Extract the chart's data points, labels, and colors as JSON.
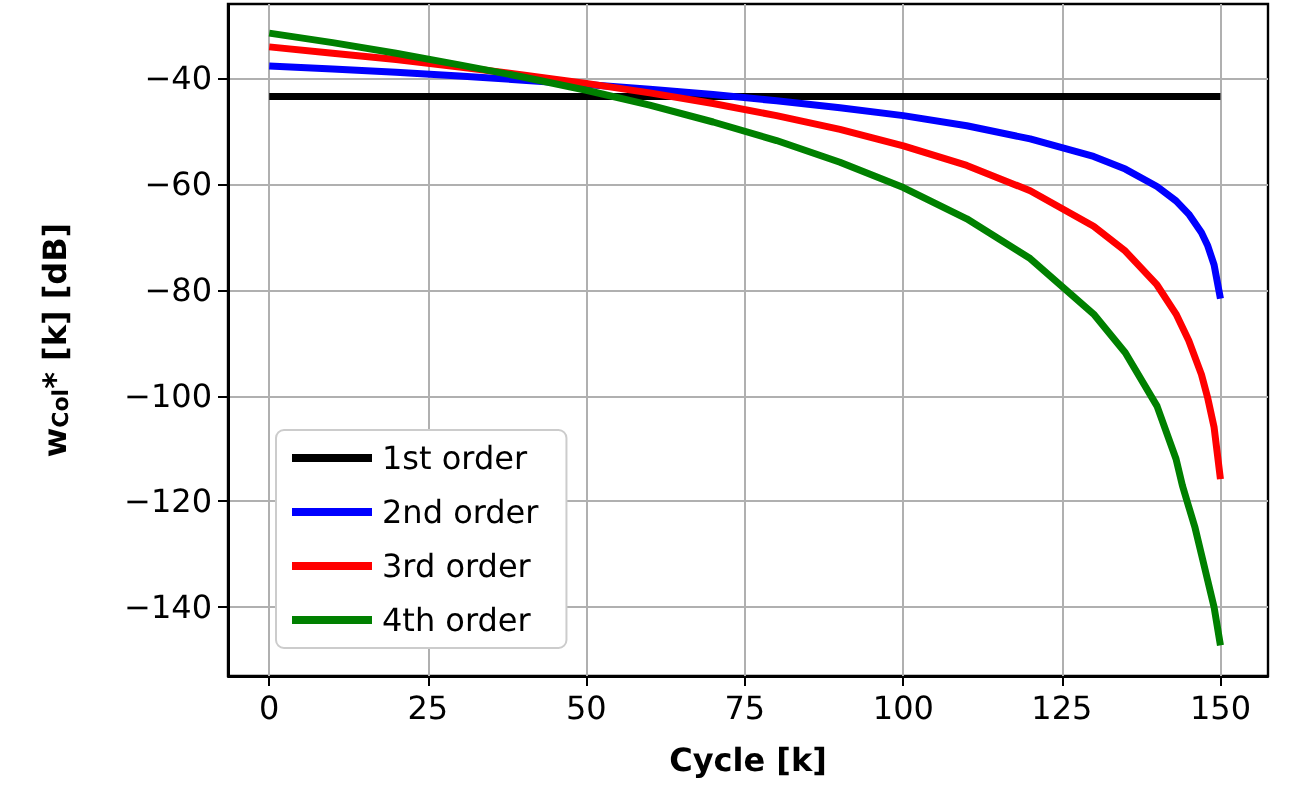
{
  "chart_data": {
    "type": "line",
    "xlabel": "Cycle [k]",
    "ylabel": "w$_{Col}$* [k] [dB]",
    "series": [
      {
        "name": "1st order",
        "color": "#000000",
        "x": [
          0,
          150
        ],
        "values": [
          -43.5,
          -43.5
        ]
      },
      {
        "name": "2nd order",
        "color": "#0000ff",
        "x": [
          0,
          10,
          20,
          30,
          40,
          50,
          60,
          70,
          80,
          90,
          100,
          110,
          120,
          130,
          135,
          140,
          143,
          145,
          147,
          148,
          149,
          150
        ],
        "values": [
          -37.7,
          -38.3,
          -38.9,
          -39.6,
          -40.4,
          -41.2,
          -42.1,
          -43.1,
          -44.3,
          -45.6,
          -47.1,
          -49.0,
          -51.5,
          -54.8,
          -57.2,
          -60.5,
          -63.2,
          -65.7,
          -69.2,
          -71.7,
          -75.3,
          -81.7
        ]
      },
      {
        "name": "3rd order",
        "color": "#ff0000",
        "x": [
          0,
          10,
          20,
          30,
          40,
          50,
          60,
          70,
          80,
          90,
          100,
          110,
          120,
          130,
          135,
          140,
          143,
          145,
          147,
          148,
          149,
          150
        ],
        "values": [
          -34.1,
          -35.3,
          -36.5,
          -37.9,
          -39.4,
          -41.0,
          -42.8,
          -44.8,
          -47.1,
          -49.7,
          -52.8,
          -56.5,
          -61.3,
          -68.0,
          -72.7,
          -79.1,
          -84.6,
          -89.6,
          -96.0,
          -100.5,
          -106.0,
          -115.8
        ]
      },
      {
        "name": "4th order",
        "color": "#008000",
        "x": [
          0,
          10,
          20,
          30,
          40,
          50,
          60,
          70,
          80,
          90,
          100,
          110,
          120,
          130,
          135,
          140,
          143,
          144,
          145,
          146,
          147,
          148,
          149,
          150
        ],
        "values": [
          -31.5,
          -33.3,
          -35.3,
          -37.5,
          -39.8,
          -42.3,
          -45.1,
          -48.3,
          -51.8,
          -55.9,
          -60.7,
          -66.6,
          -74.1,
          -84.6,
          -91.9,
          -102.0,
          -112.0,
          -117.0,
          -121.0,
          -125.0,
          -130.0,
          -135.0,
          -140.0,
          -147.2
        ]
      }
    ],
    "xlim": [
      -6.5,
      157.5
    ],
    "ylim": [
      -153,
      -26
    ],
    "xticks": [
      0,
      25,
      50,
      75,
      100,
      125,
      150
    ],
    "yticks": [
      {
        "value": -140,
        "label": "−140"
      },
      {
        "value": -120,
        "label": "−120"
      },
      {
        "value": -100,
        "label": "−100"
      },
      {
        "value": -80,
        "label": "−80"
      },
      {
        "value": -60,
        "label": "−60"
      },
      {
        "value": -40,
        "label": "−40"
      }
    ],
    "grid": true,
    "legend": "bottom left",
    "line_style": "solid"
  }
}
